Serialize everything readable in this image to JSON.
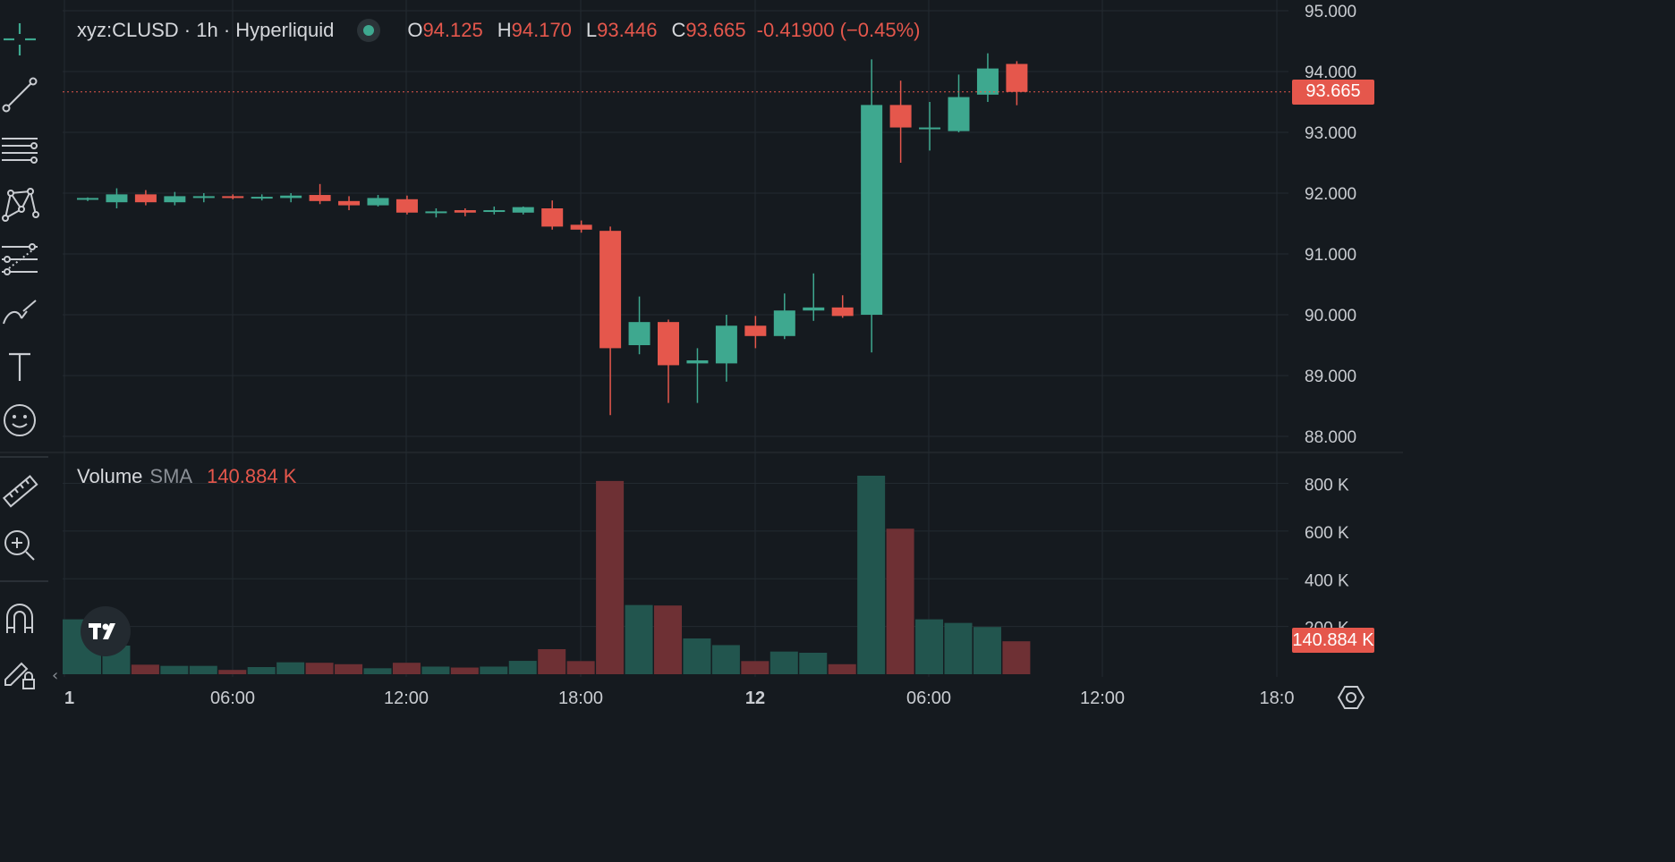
{
  "header": {
    "symbol_line": "xyz:CLUSD · 1h · Hyperliquid",
    "ohlc": [
      {
        "key": "O",
        "value": "94.125"
      },
      {
        "key": "H",
        "value": "94.170"
      },
      {
        "key": "L",
        "value": "93.446"
      },
      {
        "key": "C",
        "value": "93.665"
      }
    ],
    "change": "-0.41900 (−0.45%)"
  },
  "volume_legend": {
    "title": "Volume",
    "sma_label": "SMA",
    "sma_value": "140.884 K"
  },
  "price_tag": "93.665",
  "volume_tag": "140.884 K",
  "colors": {
    "up": "#3ea88f",
    "down": "#e5574c",
    "up_vol": "#22554e",
    "down_vol": "#6e3034",
    "background": "#151a1f",
    "grid": "#232a30"
  },
  "toolbar": {
    "icons": [
      "crosshair-icon",
      "trend-line-icon",
      "horizontal-lines-icon",
      "pattern-icon",
      "fib-levels-icon",
      "brush-icon",
      "text-icon",
      "emoji-icon",
      "ruler-icon",
      "zoom-in-icon",
      "magnet-icon",
      "lock-drawing-icon"
    ]
  },
  "chart_data": {
    "type": "candlestick",
    "interval": "1h",
    "y_ticks": [
      "88.000",
      "89.000",
      "90.000",
      "91.000",
      "92.000",
      "93.000",
      "94.000",
      "95.000"
    ],
    "ylim": [
      87.9,
      95.0
    ],
    "x_ticks": [
      "1",
      "06:00",
      "12:00",
      "18:00",
      "12",
      "06:00",
      "12:00",
      "18:0"
    ],
    "last_price": 93.665,
    "candles": [
      {
        "o": 91.9,
        "h": 91.93,
        "l": 91.87,
        "c": 91.92
      },
      {
        "o": 91.85,
        "h": 92.08,
        "l": 91.75,
        "c": 91.98
      },
      {
        "o": 91.98,
        "h": 92.05,
        "l": 91.8,
        "c": 91.85
      },
      {
        "o": 91.85,
        "h": 92.02,
        "l": 91.8,
        "c": 91.95
      },
      {
        "o": 91.93,
        "h": 92.0,
        "l": 91.85,
        "c": 91.95
      },
      {
        "o": 91.95,
        "h": 91.98,
        "l": 91.9,
        "c": 91.92
      },
      {
        "o": 91.93,
        "h": 91.98,
        "l": 91.88,
        "c": 91.94
      },
      {
        "o": 91.92,
        "h": 92.0,
        "l": 91.85,
        "c": 91.96
      },
      {
        "o": 91.97,
        "h": 92.15,
        "l": 91.82,
        "c": 91.87
      },
      {
        "o": 91.87,
        "h": 91.95,
        "l": 91.72,
        "c": 91.8
      },
      {
        "o": 91.8,
        "h": 91.97,
        "l": 91.78,
        "c": 91.92
      },
      {
        "o": 91.9,
        "h": 91.96,
        "l": 91.65,
        "c": 91.68
      },
      {
        "o": 91.7,
        "h": 91.75,
        "l": 91.6,
        "c": 91.7
      },
      {
        "o": 91.72,
        "h": 91.75,
        "l": 91.62,
        "c": 91.68
      },
      {
        "o": 91.7,
        "h": 91.78,
        "l": 91.65,
        "c": 91.72
      },
      {
        "o": 91.68,
        "h": 91.78,
        "l": 91.65,
        "c": 91.77
      },
      {
        "o": 91.75,
        "h": 91.88,
        "l": 91.4,
        "c": 91.45
      },
      {
        "o": 91.48,
        "h": 91.55,
        "l": 91.35,
        "c": 91.4
      },
      {
        "o": 91.38,
        "h": 91.45,
        "l": 88.35,
        "c": 89.45
      },
      {
        "o": 89.5,
        "h": 90.3,
        "l": 89.35,
        "c": 89.88
      },
      {
        "o": 89.88,
        "h": 89.92,
        "l": 88.55,
        "c": 89.17
      },
      {
        "o": 89.2,
        "h": 89.45,
        "l": 88.55,
        "c": 89.25
      },
      {
        "o": 89.2,
        "h": 90.0,
        "l": 88.9,
        "c": 89.82
      },
      {
        "o": 89.82,
        "h": 89.98,
        "l": 89.45,
        "c": 89.65
      },
      {
        "o": 89.65,
        "h": 90.35,
        "l": 89.6,
        "c": 90.07
      },
      {
        "o": 90.07,
        "h": 90.68,
        "l": 89.9,
        "c": 90.12
      },
      {
        "o": 90.12,
        "h": 90.32,
        "l": 89.95,
        "c": 89.98
      },
      {
        "o": 90.0,
        "h": 94.2,
        "l": 89.38,
        "c": 93.45
      },
      {
        "o": 93.45,
        "h": 93.85,
        "l": 92.5,
        "c": 93.08
      },
      {
        "o": 93.08,
        "h": 93.5,
        "l": 92.7,
        "c": 93.08
      },
      {
        "o": 93.02,
        "h": 93.95,
        "l": 93.0,
        "c": 93.58
      },
      {
        "o": 93.62,
        "h": 94.3,
        "l": 93.5,
        "c": 94.05
      },
      {
        "o": 94.125,
        "h": 94.17,
        "l": 93.446,
        "c": 93.665
      }
    ],
    "volume": {
      "yticks": [
        "200 K",
        "400 K",
        "600 K",
        "800 K"
      ],
      "ylim": [
        0,
        830000
      ],
      "values": [
        230000,
        120000,
        40000,
        35000,
        35000,
        18000,
        30000,
        50000,
        48000,
        42000,
        25000,
        48000,
        32000,
        28000,
        32000,
        56000,
        105000,
        55000,
        810000,
        290000,
        288000,
        150000,
        122000,
        55000,
        95000,
        90000,
        42000,
        832000,
        610000,
        230000,
        215000,
        198000,
        138000
      ]
    }
  }
}
